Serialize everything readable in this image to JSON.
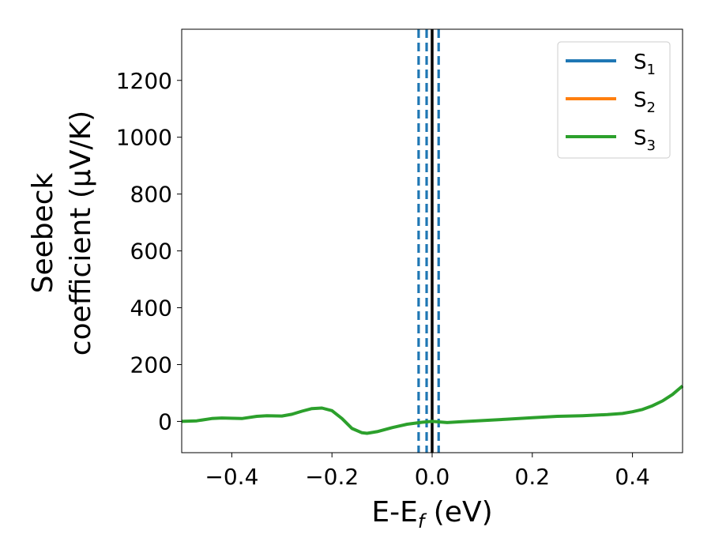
{
  "chart_data": {
    "type": "line",
    "xlabel": "E-E",
    "xlabel_sub": "f",
    "xlabel_unit": " (eV)",
    "ylabel_line1": "Seebeck",
    "ylabel_line2": "coefficient  (μV/K)",
    "xlim": [
      -0.5,
      0.5
    ],
    "ylim": [
      -110,
      1380
    ],
    "xticks": [
      -0.4,
      -0.2,
      0.0,
      0.2,
      0.4
    ],
    "xtick_labels": [
      "−0.4",
      "−0.2",
      "0.0",
      "0.2",
      "0.4"
    ],
    "yticks": [
      0,
      200,
      400,
      600,
      800,
      1000,
      1200
    ],
    "ytick_labels": [
      "0",
      "200",
      "400",
      "600",
      "800",
      "1000",
      "1200"
    ],
    "grid": false,
    "legend_position": "top-right",
    "series": [
      {
        "name": "S",
        "sub": "1",
        "color": "#1f77b4",
        "values": []
      },
      {
        "name": "S",
        "sub": "2",
        "color": "#ff7f0e",
        "values": []
      },
      {
        "name": "S",
        "sub": "3",
        "color": "#2ca02c",
        "x": [
          -0.5,
          -0.47,
          -0.44,
          -0.42,
          -0.38,
          -0.35,
          -0.33,
          -0.3,
          -0.28,
          -0.26,
          -0.24,
          -0.22,
          -0.2,
          -0.18,
          -0.16,
          -0.14,
          -0.13,
          -0.11,
          -0.08,
          -0.05,
          -0.02,
          0.0,
          0.03,
          0.06,
          0.1,
          0.15,
          0.2,
          0.25,
          0.3,
          0.35,
          0.38,
          0.4,
          0.42,
          0.44,
          0.46,
          0.48,
          0.5
        ],
        "y": [
          0,
          2,
          10,
          12,
          10,
          18,
          20,
          19,
          25,
          36,
          45,
          47,
          38,
          10,
          -25,
          -40,
          -42,
          -36,
          -22,
          -10,
          -3,
          0,
          -4,
          -1,
          3,
          8,
          13,
          18,
          20,
          24,
          28,
          34,
          42,
          55,
          72,
          95,
          125
        ]
      }
    ],
    "vlines": [
      {
        "x": -0.027,
        "style": "dashed",
        "color": "#1f77b4"
      },
      {
        "x": -0.011,
        "style": "dashed",
        "color": "#1f77b4"
      },
      {
        "x": 0.013,
        "style": "dashed",
        "color": "#1f77b4"
      },
      {
        "x": 0.0,
        "style": "solid",
        "color": "#000000"
      }
    ]
  }
}
